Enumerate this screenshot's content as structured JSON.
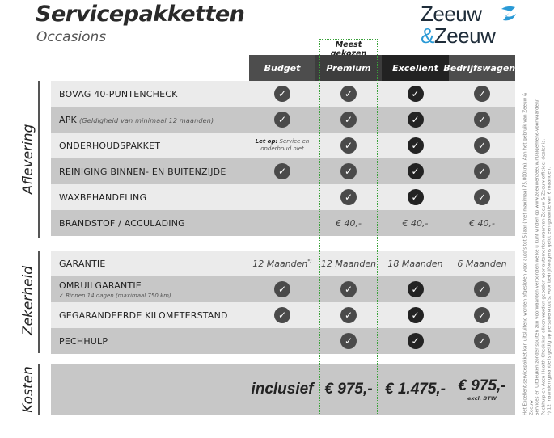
{
  "header": {
    "title": "Servicepakketten",
    "subtitle": "Occasions",
    "logo": {
      "line1": "Zeeuw",
      "amp": "&",
      "line2": "Zeeuw",
      "colors": {
        "text": "#1f2d3a",
        "accent": "#2a9ad6"
      }
    }
  },
  "highlight": {
    "label": "Meest gekozen",
    "color": "#3aa23a"
  },
  "columns": [
    {
      "label": "Budget",
      "color": "#4d4d4d"
    },
    {
      "label": "Premium",
      "color": "#3d3d3d"
    },
    {
      "label": "Excellent",
      "color": "#222222"
    },
    {
      "label": "Bedrijfswagens",
      "color": "#4d4d4d"
    }
  ],
  "sections": [
    {
      "label": "Aflevering",
      "rows": [
        {
          "label": "BOVAG 40-PUNTENCHECK",
          "cells": [
            "check",
            "check",
            "check",
            "check"
          ]
        },
        {
          "label": "APK",
          "note": "(Geldigheid van minimaal 12 maanden)",
          "cells": [
            "check",
            "check",
            "check",
            "check"
          ]
        },
        {
          "label": "ONDERHOUDSPAKKET",
          "cells": [
            {
              "bold": "Let op:",
              "text": "Service en onderhoud niet"
            },
            "check",
            "check",
            "check"
          ]
        },
        {
          "label": "REINIGING BINNEN- EN BUITENZIJDE",
          "cells": [
            "check",
            "check",
            "check",
            "check"
          ]
        },
        {
          "label": "WAXBEHANDELING",
          "cells": [
            "",
            "check",
            "check",
            "check"
          ]
        },
        {
          "label": "BRANDSTOF / ACCULADING",
          "cells": [
            "",
            "€ 40,-",
            "€ 40,-",
            "€ 40,-"
          ]
        }
      ]
    },
    {
      "label": "Zekerheid",
      "rows": [
        {
          "label": "GARANTIE",
          "cells": [
            {
              "text": "12 Maanden",
              "sup": "*)"
            },
            "12 Maanden",
            "18 Maanden",
            "6 Maanden"
          ]
        },
        {
          "label": "OMRUILGARANTIE",
          "sub": "✓  Binnen 14 dagen (maximaal 750 km)",
          "cells": [
            "check",
            "check",
            "check",
            "check"
          ]
        },
        {
          "label": "GEGARANDEERDE KILOMETERSTAND",
          "cells": [
            "check",
            "check",
            "check",
            "check"
          ]
        },
        {
          "label": "PECHHULP",
          "cells": [
            "",
            "check",
            "check",
            "check"
          ]
        }
      ]
    },
    {
      "label": "Kosten",
      "rows": [
        {
          "label": "",
          "cells": [
            {
              "price": "inclusief"
            },
            {
              "price": "€ 975,-"
            },
            {
              "price": "€ 1.475,-"
            },
            {
              "price": "€ 975,-",
              "sub": "excl. BTW"
            }
          ]
        }
      ]
    }
  ],
  "footnote": "Het Excellent-servicepakket kan uitsluitend worden afgesloten voor auto's tot 5 jaar (met maximaal 75.000km). Aan het gebruik van Zeeuw & Zeeuw+\nServices en Uitdeuken zonder spuiten zijn voorwaarden verbonden welke u kunt vinden op www.zeeuwenzeeuw.nl/algemene-voorwaarden/.\nPechhulp en Accu Health Check kan alleen worden geboden voor automerken waarvan Zeeuw & Zeeuw officieel dealer is.\n*) 12 maanden garantie is geldig op personenauto's, voor bedrijfswagens geldt een garantie van 6 maanden."
}
